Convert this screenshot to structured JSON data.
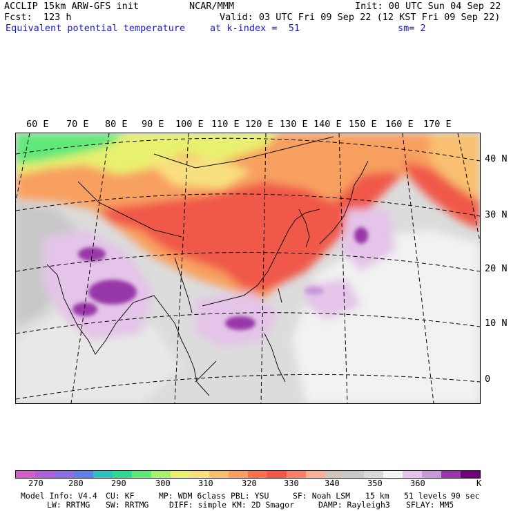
{
  "header": {
    "model": "ACCLIP 15km ARW-GFS init",
    "org": "NCAR/MMM",
    "init": "Init: 00 UTC Sun 04 Sep 22",
    "fcst": "Fcst:  123 h",
    "valid": "Valid: 03 UTC Fri 09 Sep 22 (12 KST Fri 09 Sep 22)",
    "field": "Equivalent potential temperature",
    "level": "at k-index =  51",
    "smooth": "sm= 2"
  },
  "map": {
    "lon_labels": [
      "60 E",
      "70 E",
      "80 E",
      "90 E",
      "100 E",
      "110 E",
      "120 E",
      "130 E",
      "140 E",
      "150 E",
      "160 E",
      "170 E"
    ],
    "lat_labels": [
      "40 N",
      "30 N",
      "20 N",
      "10 N",
      "0"
    ]
  },
  "colorbar": {
    "colors": [
      "#d060c8",
      "#b060d8",
      "#8a70e0",
      "#6080e8",
      "#30c0c0",
      "#30d898",
      "#60e878",
      "#a8f070",
      "#e8f070",
      "#f8e080",
      "#f8c070",
      "#f8a060",
      "#f87050",
      "#f05848",
      "#f88068",
      "#f8b098",
      "#d0c4bc",
      "#c8c8c8",
      "#d8d8d8",
      "#f4f4f4",
      "#e4c4e8",
      "#c898d8",
      "#9838a8",
      "#700078"
    ],
    "labels": [
      "270",
      "280",
      "290",
      "300",
      "310",
      "320",
      "330",
      "340",
      "350",
      "360"
    ],
    "unit": "K"
  },
  "footer": {
    "line1": {
      "model_info": "Model Info: V4.4",
      "cu": "CU: KF",
      "mp": "MP: WDM 6class",
      "pbl": "PBL: YSU",
      "sf": "SF: Noah LSM",
      "res": "15 km",
      "levels": "51 levels",
      "dt": "90 sec"
    },
    "line2": {
      "lw": "LW: RRTMG",
      "sw": "SW: RRTMG",
      "diff": "DIFF: simple",
      "km": "KM: 2D Smagor",
      "damp": "DAMP: Rayleigh3",
      "sflay": "SFLAY: MM5"
    }
  }
}
